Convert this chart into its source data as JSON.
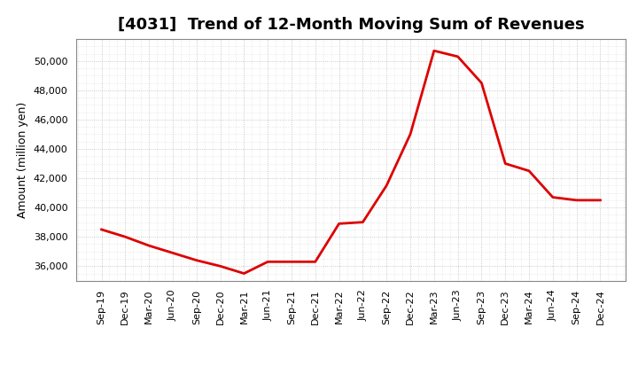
{
  "title": "[4031]  Trend of 12-Month Moving Sum of Revenues",
  "ylabel": "Amount (million yen)",
  "line_color": "#dd0000",
  "background_color": "#ffffff",
  "plot_bg_color": "#ffffff",
  "grid_color": "#aaaaaa",
  "x_labels": [
    "Sep-19",
    "Dec-19",
    "Mar-20",
    "Jun-20",
    "Sep-20",
    "Dec-20",
    "Mar-21",
    "Jun-21",
    "Sep-21",
    "Dec-21",
    "Mar-22",
    "Jun-22",
    "Sep-22",
    "Dec-22",
    "Mar-23",
    "Jun-23",
    "Sep-23",
    "Dec-23",
    "Mar-24",
    "Jun-24",
    "Sep-24",
    "Dec-24"
  ],
  "y_values": [
    38500,
    38000,
    37400,
    36900,
    36400,
    36000,
    35500,
    36300,
    36300,
    36300,
    38900,
    39000,
    41500,
    45000,
    50700,
    50300,
    48500,
    43000,
    42500,
    40700,
    40500,
    40500
  ],
  "ylim": [
    35000,
    51500
  ],
  "yticks": [
    36000,
    38000,
    40000,
    42000,
    44000,
    46000,
    48000,
    50000
  ],
  "title_fontsize": 13,
  "ylabel_fontsize": 9,
  "tick_fontsize": 8,
  "line_width": 2.0
}
